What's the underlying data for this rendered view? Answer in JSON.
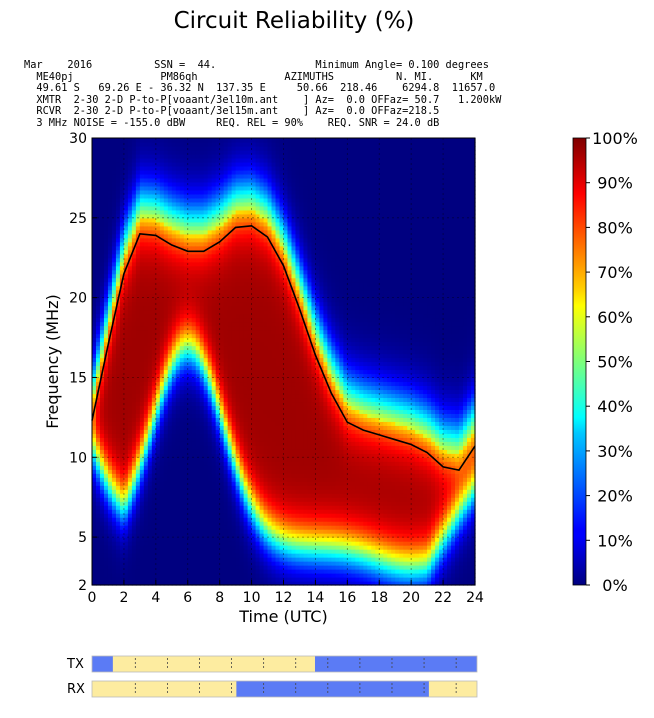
{
  "chart_data": {
    "type": "heatmap",
    "title": "Circuit Reliability (%)",
    "header_lines": [
      "Mar    2016          SSN =  44.                Minimum Angle= 0.100 degrees",
      "  ME40pj              PM86qh              AZIMUTHS          N. MI.      KM",
      "  49.61 S   69.26 E - 36.32 N  137.35 E     50.66  218.46    6294.8  11657.0",
      "  XMTR  2-30 2-D P-to-P[voaant/3el10m.ant    ] Az=  0.0 OFFaz= 50.7   1.200kW",
      "  RCVR  2-30 2-D P-to-P[voaant/3el15m.ant    ] Az=  0.0 OFFaz=218.5",
      "  3 MHz NOISE = -155.0 dBW     REQ. REL = 90%    REQ. SNR = 24.0 dB"
    ],
    "xlabel": "Time (UTC)",
    "ylabel": "Frequency (MHz)",
    "xlim": [
      0,
      24
    ],
    "ylim": [
      2,
      30
    ],
    "x_ticks": [
      0,
      2,
      4,
      6,
      8,
      10,
      12,
      14,
      16,
      18,
      20,
      22,
      24
    ],
    "y_ticks": [
      2,
      5,
      10,
      15,
      20,
      25,
      30
    ],
    "colorbar": {
      "labels": [
        "0%",
        "10%",
        "20%",
        "30%",
        "40%",
        "50%",
        "60%",
        "70%",
        "80%",
        "90%",
        "100%"
      ],
      "range": [
        0,
        100
      ],
      "colormap": "jet"
    },
    "muf_line": {
      "x": [
        0,
        1,
        2,
        3,
        4,
        5,
        6,
        7,
        8,
        9,
        10,
        11,
        12,
        13,
        14,
        15,
        16,
        17,
        18,
        19,
        20,
        21,
        22,
        23,
        24
      ],
      "y": [
        12.3,
        17.0,
        21.5,
        24.0,
        23.9,
        23.3,
        22.9,
        22.9,
        23.5,
        24.4,
        24.5,
        23.8,
        22.0,
        19.3,
        16.4,
        14.0,
        12.2,
        11.7,
        11.4,
        11.1,
        10.8,
        10.3,
        9.4,
        9.2,
        10.7
      ]
    },
    "peak_day": {
      "times": [
        1.5,
        4.5,
        7.5,
        10,
        12,
        14,
        16,
        18.5,
        20.5,
        22.5
      ],
      "peaks": [
        0.0,
        0.0,
        0.0,
        0.0,
        0.0,
        0.0,
        0.0,
        0.0,
        0.0,
        0.0
      ]
    },
    "tx_rx_bars": {
      "tx_label": "TX",
      "rx_label": "RX",
      "tx_day_hours": [
        [
          1.3,
          13.9
        ]
      ],
      "rx_day_hours": [
        [
          0,
          9.0
        ],
        [
          21.0,
          24
        ]
      ],
      "day_color": "#fdeca0",
      "night_color": "#5b7bf5"
    },
    "grid": true
  }
}
